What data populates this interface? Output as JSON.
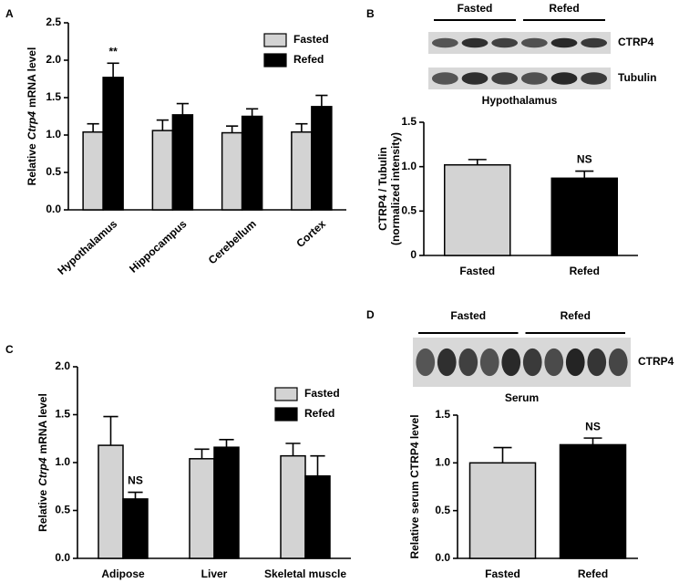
{
  "chart_data": [
    {
      "type": "bar",
      "panel": "A",
      "categories": [
        "Hypothalamus",
        "Hippocampus",
        "Cerebellum",
        "Cortex"
      ],
      "series": [
        {
          "name": "Fasted",
          "color": "#d3d3d3",
          "values": [
            1.04,
            1.06,
            1.03,
            1.04
          ],
          "errors": [
            0.11,
            0.14,
            0.09,
            0.11
          ]
        },
        {
          "name": "Refed",
          "color": "#000000",
          "values": [
            1.77,
            1.27,
            1.25,
            1.38
          ],
          "errors": [
            0.19,
            0.15,
            0.1,
            0.15
          ],
          "annotations": [
            "**",
            null,
            null,
            null
          ]
        }
      ],
      "ylabel": [
        [
          {
            "text": "Relative"
          },
          {
            "text": "Ctrp4",
            "italic": true
          },
          {
            "text": "mRNA level"
          }
        ]
      ],
      "ylim": [
        0,
        2.5
      ],
      "yticks": [
        {
          "value": 0,
          "label": "0.0"
        },
        0.5,
        {
          "value": 1,
          "label": "1.0"
        },
        1.5,
        {
          "value": 2,
          "label": "2.0"
        },
        2.5
      ],
      "legend": "upper right"
    },
    {
      "type": "bar",
      "panel": "B",
      "blot": {
        "groups": [
          "Fasted",
          "Refed"
        ],
        "bands": [
          "CTRP4",
          "Tubulin"
        ],
        "tissue": "Hypothalamus"
      },
      "categories": [
        "Fasted",
        "Refed"
      ],
      "values": [
        1.02,
        0.87
      ],
      "errors": [
        0.06,
        0.08
      ],
      "colors": [
        "#d3d3d3",
        "#000000"
      ],
      "annotations": [
        null,
        "NS"
      ],
      "ylabel": [
        [
          {
            "text": "CTRP4 / Tubulin"
          }
        ],
        [
          {
            "text": "(normalized intensity)"
          }
        ]
      ],
      "ylim": [
        0,
        1.5
      ],
      "yticks": [
        0,
        0.5,
        {
          "value": 1,
          "label": "1.0"
        },
        1.5
      ]
    },
    {
      "type": "bar",
      "panel": "C",
      "categories": [
        "Adipose",
        "Liver",
        "Skeletal muscle"
      ],
      "series": [
        {
          "name": "Fasted",
          "color": "#d3d3d3",
          "values": [
            1.18,
            1.04,
            1.07
          ],
          "errors": [
            0.3,
            0.1,
            0.13
          ]
        },
        {
          "name": "Refed",
          "color": "#000000",
          "values": [
            0.62,
            1.16,
            0.86
          ],
          "errors": [
            0.07,
            0.08,
            0.21
          ],
          "annotations": [
            "NS",
            null,
            null
          ]
        }
      ],
      "ylabel": [
        [
          {
            "text": "Relative"
          },
          {
            "text": "Ctrp4",
            "italic": true
          },
          {
            "text": "mRNA level"
          }
        ]
      ],
      "ylim": [
        0,
        2
      ],
      "yticks": [
        {
          "value": 0,
          "label": "0.0"
        },
        0.5,
        {
          "value": 1,
          "label": "1.0"
        },
        1.5,
        {
          "value": 2,
          "label": "2.0"
        }
      ],
      "legend": "upper right"
    },
    {
      "type": "bar",
      "panel": "D",
      "blot": {
        "groups": [
          "Fasted",
          "Refed"
        ],
        "bands": [
          "CTRP4"
        ],
        "tissue": "Serum"
      },
      "categories": [
        "Fasted",
        "Refed"
      ],
      "values": [
        1.0,
        1.19
      ],
      "errors": [
        0.16,
        0.07
      ],
      "colors": [
        "#d3d3d3",
        "#000000"
      ],
      "annotations": [
        null,
        "NS"
      ],
      "ylabel": [
        [
          {
            "text": "Relative serum CTRP4 level"
          }
        ]
      ],
      "ylim": [
        0,
        1.5
      ],
      "yticks": [
        {
          "value": 0,
          "label": "0.0"
        },
        0.5,
        {
          "value": 1,
          "label": "1.0"
        },
        1.5
      ]
    }
  ]
}
